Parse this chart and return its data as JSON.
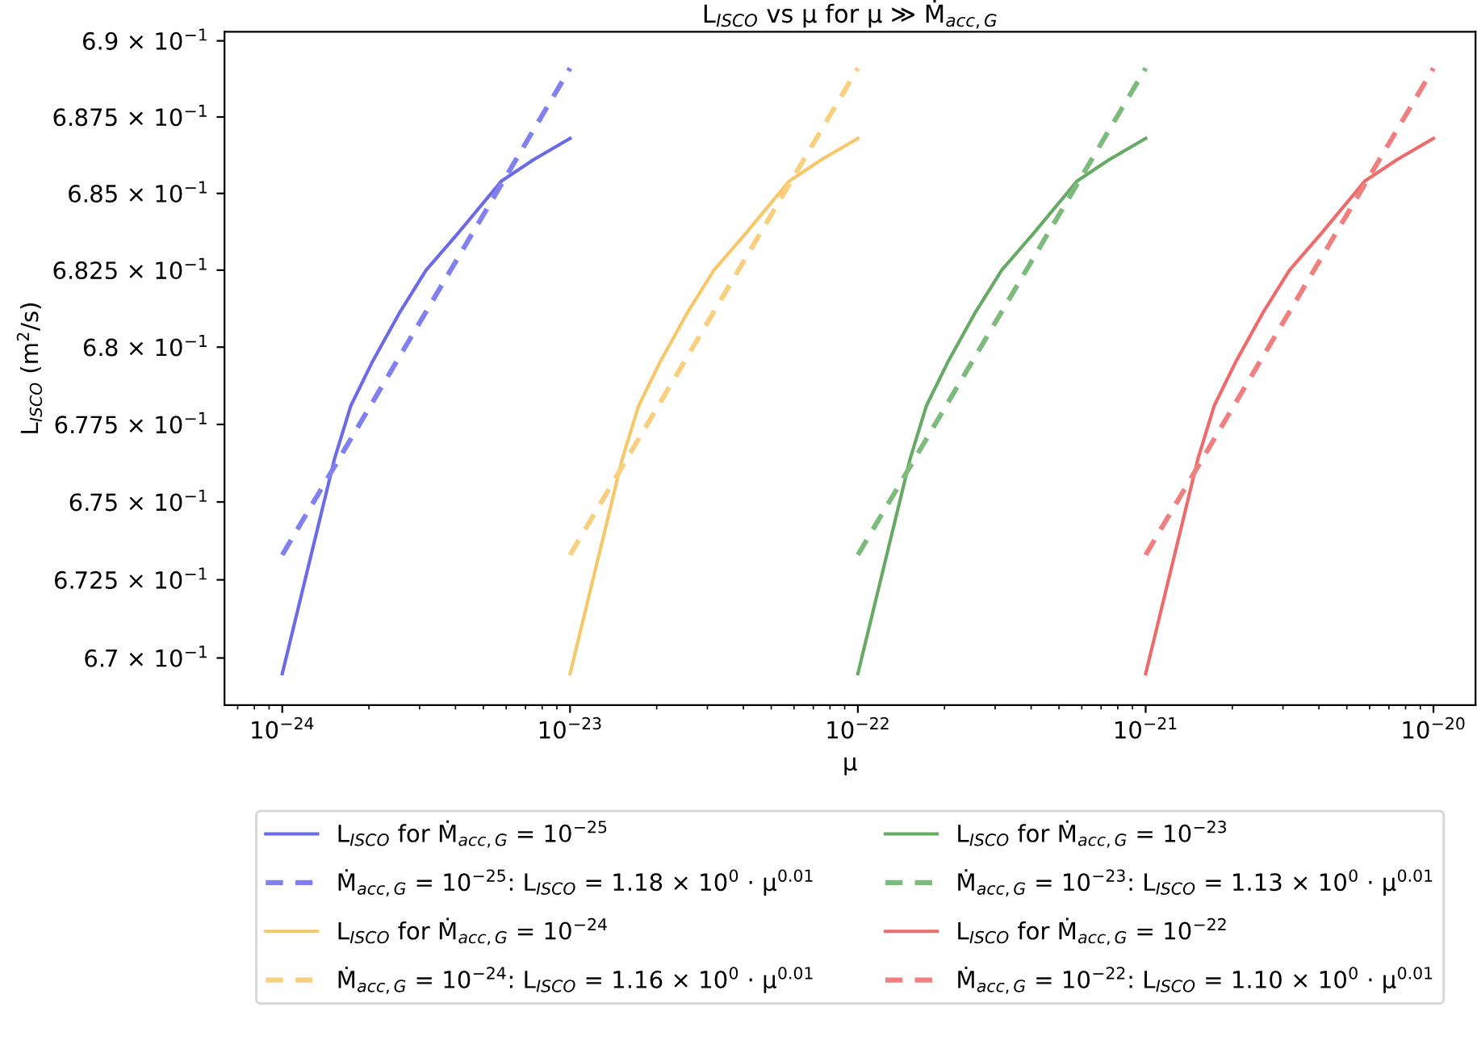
{
  "chart_data": {
    "type": "line",
    "title": "L$_{ISCO}$ vs μ for μ ≫ Ṁ$_{acc,G}$",
    "xlabel": "μ",
    "ylabel": "L$_{ISCO}$ (m$^{2}$/s)",
    "log": "xy",
    "grid": false,
    "legend": "bottom",
    "marker": "none",
    "xlim": [
      6.3e-25,
      1.4e-20
    ],
    "xticks": [
      {
        "value": 1e-24,
        "label": "10$^{−24}$"
      },
      {
        "value": 1e-23,
        "label": "10$^{−23}$"
      },
      {
        "value": 1e-22,
        "label": "10$^{−22}$"
      },
      {
        "value": 1e-21,
        "label": "10$^{−21}$"
      },
      {
        "value": 1e-20,
        "label": "10$^{−20}$"
      }
    ],
    "ylim": [
      0.6685,
      0.6903
    ],
    "yticks": [
      {
        "value": 0.67,
        "label": "6.7 × 10$^{−1}$"
      },
      {
        "value": 0.6725,
        "label": "6.725 × 10$^{−1}$"
      },
      {
        "value": 0.675,
        "label": "6.75 × 10$^{−1}$"
      },
      {
        "value": 0.6775,
        "label": "6.775 × 10$^{−1}$"
      },
      {
        "value": 0.68,
        "label": "6.8 × 10$^{−1}$"
      },
      {
        "value": 0.6825,
        "label": "6.825 × 10$^{−1}$"
      },
      {
        "value": 0.685,
        "label": "6.85 × 10$^{−1}$"
      },
      {
        "value": 0.6875,
        "label": "6.875 × 10$^{−1}$"
      },
      {
        "value": 0.69,
        "label": "6.9 × 10$^{−1}$"
      }
    ],
    "series": [
      {
        "name": "L$_{ISCO}$ for Ṁ$_{acc,G}$ = 10$^{−25}$",
        "color": "#6b6be8",
        "line_style": "solid",
        "x": [
          1e-24,
          1.52e-24,
          1.73e-24,
          2.05e-24,
          2.55e-24,
          3.16e-24,
          4.08e-24,
          5.77e-24,
          7.46e-24,
          1e-23
        ],
        "values": [
          0.6695,
          0.6764,
          0.6781,
          0.6795,
          0.6811,
          0.6825,
          0.6837,
          0.6854,
          0.6861,
          0.6868
        ]
      },
      {
        "name": "Ṁ$_{acc,G}$ = 10$^{−25}$: L$_{ISCO}$ = 1.18 × 10$^{0}$ · μ$^{0.01}$",
        "color": "#8080f0",
        "line_style": "dashed",
        "x": [
          1e-24,
          1e-23
        ],
        "values": [
          0.6733,
          0.6891
        ]
      },
      {
        "name": "L$_{ISCO}$ for Ṁ$_{acc,G}$ = 10$^{−24}$",
        "color": "#f7c86a",
        "line_style": "solid",
        "x": [
          1e-23,
          1.52e-23,
          1.73e-23,
          2.05e-23,
          2.55e-23,
          3.16e-23,
          4.08e-23,
          5.77e-23,
          7.46e-23,
          1e-22
        ],
        "values": [
          0.6695,
          0.6764,
          0.6781,
          0.6795,
          0.6811,
          0.6825,
          0.6837,
          0.6854,
          0.6861,
          0.6868
        ]
      },
      {
        "name": "Ṁ$_{acc,G}$ = 10$^{−24}$: L$_{ISCO}$ = 1.16 × 10$^{0}$ · μ$^{0.01}$",
        "color": "#f8d080",
        "line_style": "dashed",
        "x": [
          1e-23,
          1e-22
        ],
        "values": [
          0.6733,
          0.6891
        ]
      },
      {
        "name": "L$_{ISCO}$ for Ṁ$_{acc,G}$ = 10$^{−23}$",
        "color": "#66aa66",
        "line_style": "solid",
        "x": [
          1e-22,
          1.52e-22,
          1.73e-22,
          2.05e-22,
          2.55e-22,
          3.16e-22,
          4.08e-22,
          5.77e-22,
          7.46e-22,
          1e-21
        ],
        "values": [
          0.6695,
          0.6764,
          0.6781,
          0.6795,
          0.6811,
          0.6825,
          0.6837,
          0.6854,
          0.6861,
          0.6868
        ]
      },
      {
        "name": "Ṁ$_{acc,G}$ = 10$^{−23}$: L$_{ISCO}$ = 1.13 × 10$^{0}$ · μ$^{0.01}$",
        "color": "#7dbb7d",
        "line_style": "dashed",
        "x": [
          1e-22,
          1e-21
        ],
        "values": [
          0.6733,
          0.6891
        ]
      },
      {
        "name": "L$_{ISCO}$ for Ṁ$_{acc,G}$ = 10$^{−22}$",
        "color": "#ee6b6b",
        "line_style": "solid",
        "x": [
          1e-21,
          1.52e-21,
          1.73e-21,
          2.05e-21,
          2.55e-21,
          3.16e-21,
          4.08e-21,
          5.77e-21,
          7.46e-21,
          1e-20
        ],
        "values": [
          0.6695,
          0.6764,
          0.6781,
          0.6795,
          0.6811,
          0.6825,
          0.6837,
          0.6854,
          0.6861,
          0.6868
        ]
      },
      {
        "name": "Ṁ$_{acc,G}$ = 10$^{−22}$: L$_{ISCO}$ = 1.10 × 10$^{0}$ · μ$^{0.01}$",
        "color": "#f08080",
        "line_style": "dashed",
        "x": [
          1e-21,
          1e-20
        ],
        "values": [
          0.6733,
          0.6891
        ]
      }
    ]
  }
}
